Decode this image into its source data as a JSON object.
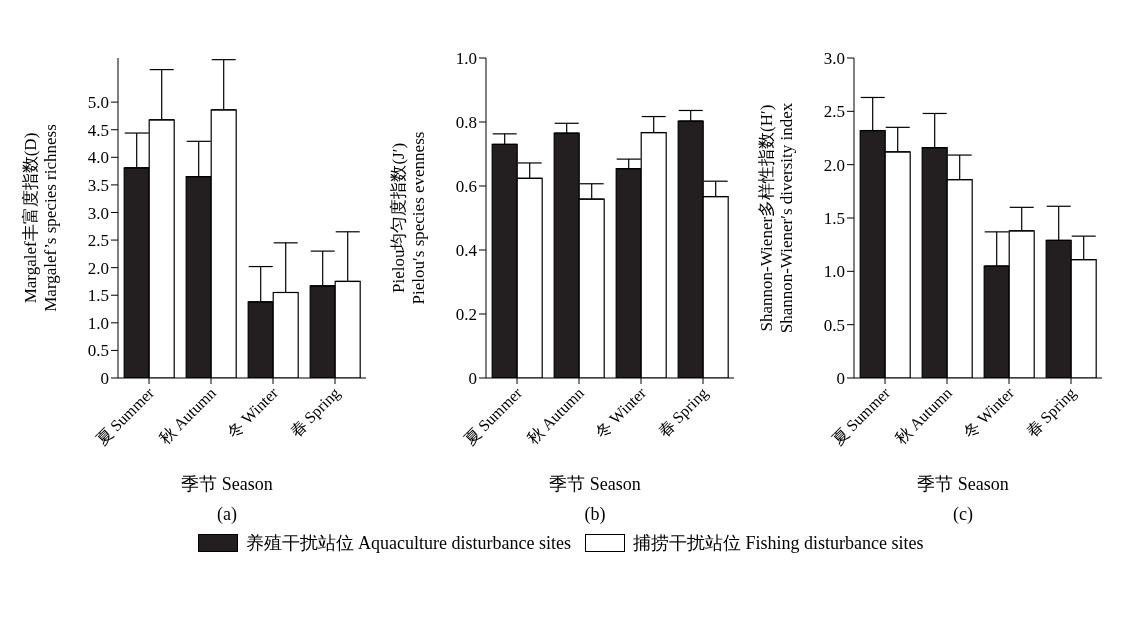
{
  "chart_data": [
    {
      "type": "bar",
      "ylabel": "Margalef丰富度指数(D)\nMargalef’s species richness",
      "xlabel": "季节 Season",
      "annotations": [
        "(a)"
      ],
      "categories": [
        "夏 Summer",
        "秋 Autumn",
        "冬 Winter",
        "春 Spring"
      ],
      "legend": "bottom",
      "series": [
        {
          "name": "养殖干扰站位 Aquaculture disturbance sites",
          "color": "#231f20",
          "values": [
            3.81,
            3.65,
            1.38,
            1.67
          ],
          "errors": [
            [
              3.81,
              4.44
            ],
            [
              3.65,
              4.29
            ],
            [
              1.38,
              2.02
            ],
            [
              1.67,
              2.3
            ]
          ]
        },
        {
          "name": "捕捞干扰站位 Fishing disturbance sites",
          "color": "#ffffff",
          "values": [
            4.68,
            4.86,
            1.55,
            1.75
          ],
          "errors": [
            [
              4.68,
              5.59
            ],
            [
              4.86,
              5.77
            ],
            [
              1.55,
              2.45
            ],
            [
              1.75,
              2.65
            ]
          ]
        }
      ],
      "ylim": [
        0,
        5.8
      ],
      "yticks": [
        0,
        0.5,
        {
          "value": 1,
          "label": "1.0"
        },
        1.5,
        {
          "value": 2,
          "label": "2.0"
        },
        2.5,
        {
          "value": 3,
          "label": "3.0"
        },
        3.5,
        {
          "value": 4,
          "label": "4.0"
        },
        4.5,
        {
          "value": 5,
          "label": "5.0"
        }
      ]
    },
    {
      "type": "bar",
      "ylabel": "Pielou均匀度指数(J′)\nPielou′s species evenness",
      "xlabel": "季节 Season",
      "annotations": [
        "(b)"
      ],
      "categories": [
        "夏 Summer",
        "秋 Autumn",
        "冬 Winter",
        "春 Spring"
      ],
      "series": [
        {
          "color": "#231f20",
          "values": [
            0.73,
            0.765,
            0.654,
            0.803
          ],
          "errors": [
            [
              0.73,
              0.763
            ],
            [
              0.765,
              0.796
            ],
            [
              0.654,
              0.684
            ],
            [
              0.803,
              0.836
            ]
          ]
        },
        {
          "color": "#ffffff",
          "values": [
            0.624,
            0.559,
            0.767,
            0.567
          ],
          "errors": [
            [
              0.624,
              0.672
            ],
            [
              0.559,
              0.607
            ],
            [
              0.767,
              0.817
            ],
            [
              0.567,
              0.615
            ]
          ]
        }
      ],
      "ylim": [
        0,
        1
      ],
      "yticks": [
        0,
        0.2,
        0.4,
        0.6,
        0.8,
        {
          "value": 1,
          "label": "1.0"
        }
      ]
    },
    {
      "type": "bar",
      "ylabel": "Shannon-Wiener多样性指数(H′)\nShannon-Wiener′s diversity index",
      "xlabel": "季节 Season",
      "annotations": [
        "(c)"
      ],
      "categories": [
        "夏 Summer",
        "秋 Autumn",
        "冬 Winter",
        "春 Spring"
      ],
      "series": [
        {
          "color": "#231f20",
          "values": [
            2.32,
            2.16,
            1.05,
            1.29
          ],
          "errors": [
            [
              2.32,
              2.63
            ],
            [
              2.16,
              2.48
            ],
            [
              1.05,
              1.37
            ],
            [
              1.29,
              1.61
            ]
          ]
        },
        {
          "color": "#ffffff",
          "values": [
            2.12,
            1.86,
            1.38,
            1.11
          ],
          "errors": [
            [
              2.12,
              2.35
            ],
            [
              1.86,
              2.09
            ],
            [
              1.38,
              1.6
            ],
            [
              1.11,
              1.33
            ]
          ]
        }
      ],
      "ylim": [
        0,
        3
      ],
      "yticks": [
        0,
        0.5,
        {
          "value": 1,
          "label": "1.0"
        },
        1.5,
        {
          "value": 2,
          "label": "2.0"
        },
        2.5,
        {
          "value": 3,
          "label": "3.0"
        }
      ]
    }
  ]
}
